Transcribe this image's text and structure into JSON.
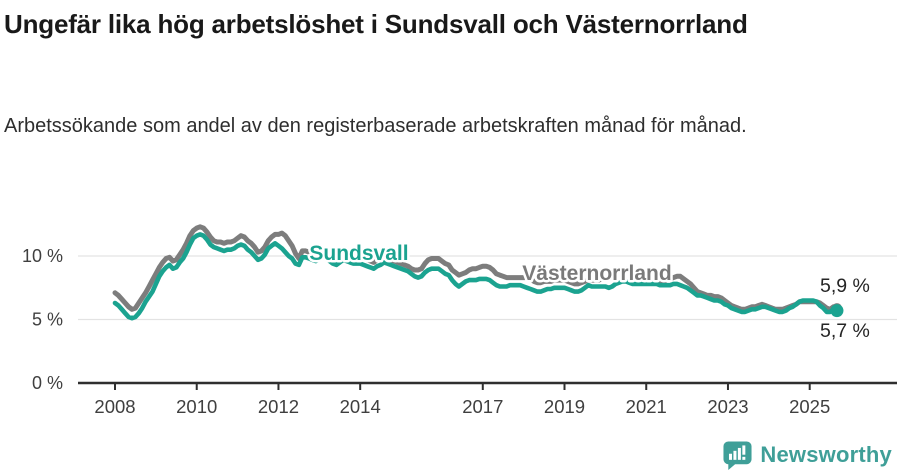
{
  "title": "Ungefär lika hög arbetslöshet i Sundsvall och Västernorrland",
  "subtitle": "Arbetssökande som andel av den registerbaserade arbetskraften månad för månad.",
  "footer": {
    "brand": "Newsworthy"
  },
  "colors": {
    "sundsvall": "#1ba390",
    "vasternorrland": "#7d7d7d",
    "grid": "#e3e3e3",
    "axis": "#2f2f2f",
    "tick_text": "#3f3f3f",
    "end_label_text": "#252525",
    "brand_teal": "#3f9f98"
  },
  "chart_data": {
    "type": "line",
    "title": "Ungefär lika hög arbetslöshet i Sundsvall och Västernorrland",
    "subtitle": "Arbetssökande som andel av den registerbaserade arbetskraften månad för månad.",
    "x_start": "2008-01",
    "x_end": "2025-09",
    "x_tick_labels": [
      {
        "year": 2008,
        "label": "2008"
      },
      {
        "year": 2010,
        "label": "2010"
      },
      {
        "year": 2012,
        "label": "2012"
      },
      {
        "year": 2014,
        "label": "2014"
      },
      {
        "year": 2017,
        "label": "2017"
      },
      {
        "year": 2019,
        "label": "2019"
      },
      {
        "year": 2021,
        "label": "2021"
      },
      {
        "year": 2023,
        "label": "2023"
      },
      {
        "year": 2025,
        "label": "2025"
      }
    ],
    "y_ticks": [
      {
        "value": 0,
        "label": "0 %"
      },
      {
        "value": 5,
        "label": "5 %"
      },
      {
        "value": 10,
        "label": "10 %"
      }
    ],
    "ylim": [
      0,
      13.5
    ],
    "grid": "horizontal-only",
    "unit": "%",
    "series": [
      {
        "name": "Västernorrland",
        "color": "#7d7d7d",
        "end_label": "5,9 %",
        "last_value": 5.9,
        "values": [
          7.1,
          6.9,
          6.6,
          6.3,
          6.0,
          5.8,
          5.9,
          6.3,
          6.7,
          7.1,
          7.6,
          8.1,
          8.6,
          9.1,
          9.5,
          9.8,
          9.9,
          9.6,
          9.7,
          10.1,
          10.5,
          11.0,
          11.6,
          12.0,
          12.2,
          12.3,
          12.2,
          11.9,
          11.5,
          11.2,
          11.1,
          11.1,
          11.0,
          11.1,
          11.1,
          11.2,
          11.4,
          11.6,
          11.5,
          11.2,
          11.0,
          10.7,
          10.3,
          10.4,
          10.7,
          11.2,
          11.5,
          11.7,
          11.7,
          11.8,
          11.6,
          11.2,
          10.8,
          10.2,
          9.8,
          10.4,
          10.4,
          10.3,
          10.2,
          10.2,
          10.3,
          10.4,
          10.3,
          10.1,
          9.9,
          9.8,
          10.0,
          10.2,
          10.1,
          10.0,
          9.9,
          9.9,
          9.9,
          9.8,
          9.7,
          9.6,
          9.5,
          9.7,
          9.8,
          10.0,
          9.9,
          9.7,
          9.6,
          9.5,
          9.4,
          9.3,
          9.2,
          9.0,
          8.9,
          8.9,
          9.0,
          9.4,
          9.7,
          9.8,
          9.8,
          9.8,
          9.6,
          9.4,
          9.3,
          8.9,
          8.7,
          8.5,
          8.6,
          8.7,
          8.9,
          9.0,
          9.0,
          9.1,
          9.2,
          9.2,
          9.1,
          8.9,
          8.6,
          8.5,
          8.4,
          8.3,
          8.3,
          8.3,
          8.3,
          8.3,
          8.3,
          8.3,
          8.2,
          8.0,
          7.9,
          7.9,
          8.0,
          8.0,
          8.0,
          8.1,
          8.1,
          8.1,
          8.1,
          8.0,
          7.9,
          7.8,
          7.8,
          7.9,
          8.0,
          8.1,
          8.1,
          8.1,
          8.1,
          8.2,
          8.2,
          8.2,
          8.4,
          8.7,
          8.9,
          9.0,
          9.0,
          8.9,
          8.7,
          8.5,
          8.3,
          8.2,
          8.2,
          8.2,
          8.2,
          8.1,
          8.0,
          8.0,
          8.1,
          8.2,
          8.3,
          8.4,
          8.4,
          8.2,
          8.0,
          7.8,
          7.5,
          7.2,
          7.1,
          7.0,
          6.9,
          6.9,
          6.8,
          6.8,
          6.7,
          6.5,
          6.3,
          6.1,
          6.0,
          5.9,
          5.8,
          5.8,
          5.9,
          6.0,
          6.0,
          6.1,
          6.2,
          6.1,
          6.0,
          5.9,
          5.8,
          5.8,
          5.8,
          5.9,
          6.0,
          6.1,
          6.2,
          6.4,
          6.4,
          6.4,
          6.4,
          6.4,
          6.4,
          6.3,
          6.1,
          5.9,
          5.8,
          6.0,
          5.9
        ]
      },
      {
        "name": "Sundsvall",
        "color": "#1ba390",
        "end_label": "5,7 %",
        "last_value": 5.7,
        "values": [
          6.3,
          6.1,
          5.8,
          5.5,
          5.2,
          5.1,
          5.2,
          5.5,
          5.9,
          6.4,
          6.8,
          7.2,
          7.8,
          8.4,
          8.8,
          9.1,
          9.3,
          9.0,
          9.1,
          9.5,
          9.8,
          10.3,
          10.9,
          11.4,
          11.6,
          11.7,
          11.6,
          11.3,
          10.9,
          10.7,
          10.6,
          10.5,
          10.4,
          10.5,
          10.5,
          10.6,
          10.8,
          10.9,
          10.8,
          10.5,
          10.3,
          10.0,
          9.7,
          9.8,
          10.1,
          10.6,
          10.8,
          11.0,
          10.8,
          10.6,
          10.3,
          10.0,
          9.8,
          9.4,
          9.3,
          9.9,
          9.9,
          9.8,
          9.7,
          9.6,
          9.8,
          9.9,
          9.8,
          9.6,
          9.4,
          9.3,
          9.5,
          9.7,
          9.6,
          9.5,
          9.4,
          9.4,
          9.4,
          9.3,
          9.2,
          9.1,
          9.0,
          9.2,
          9.3,
          9.5,
          9.4,
          9.3,
          9.2,
          9.1,
          9.0,
          8.9,
          8.8,
          8.6,
          8.4,
          8.3,
          8.4,
          8.7,
          8.9,
          9.0,
          9.0,
          9.0,
          8.8,
          8.6,
          8.5,
          8.1,
          7.8,
          7.6,
          7.8,
          8.0,
          8.1,
          8.1,
          8.1,
          8.2,
          8.2,
          8.2,
          8.1,
          7.9,
          7.7,
          7.6,
          7.6,
          7.6,
          7.7,
          7.7,
          7.7,
          7.7,
          7.6,
          7.5,
          7.4,
          7.3,
          7.2,
          7.2,
          7.3,
          7.4,
          7.4,
          7.5,
          7.5,
          7.5,
          7.5,
          7.4,
          7.3,
          7.2,
          7.2,
          7.3,
          7.5,
          7.7,
          7.6,
          7.6,
          7.6,
          7.6,
          7.6,
          7.5,
          7.6,
          7.8,
          7.9,
          8.0,
          8.0,
          7.9,
          7.8,
          7.8,
          7.8,
          7.8,
          7.8,
          7.8,
          7.8,
          7.8,
          7.7,
          7.7,
          7.7,
          7.7,
          7.8,
          7.8,
          7.7,
          7.6,
          7.5,
          7.3,
          7.1,
          6.9,
          6.9,
          6.8,
          6.7,
          6.6,
          6.5,
          6.5,
          6.4,
          6.2,
          6.1,
          5.9,
          5.8,
          5.7,
          5.6,
          5.6,
          5.7,
          5.8,
          5.8,
          5.9,
          6.0,
          6.0,
          5.9,
          5.8,
          5.7,
          5.6,
          5.6,
          5.7,
          5.9,
          6.0,
          6.2,
          6.4,
          6.5,
          6.5,
          6.5,
          6.5,
          6.4,
          6.1,
          5.9,
          5.6,
          5.6,
          5.8,
          5.7
        ]
      }
    ],
    "series_labels": [
      {
        "text": "Sundsvall",
        "color": "#1ba390"
      },
      {
        "text": "Västernorrland",
        "color": "#7a7a7a"
      }
    ],
    "legend_position": "inline-on-lines"
  }
}
